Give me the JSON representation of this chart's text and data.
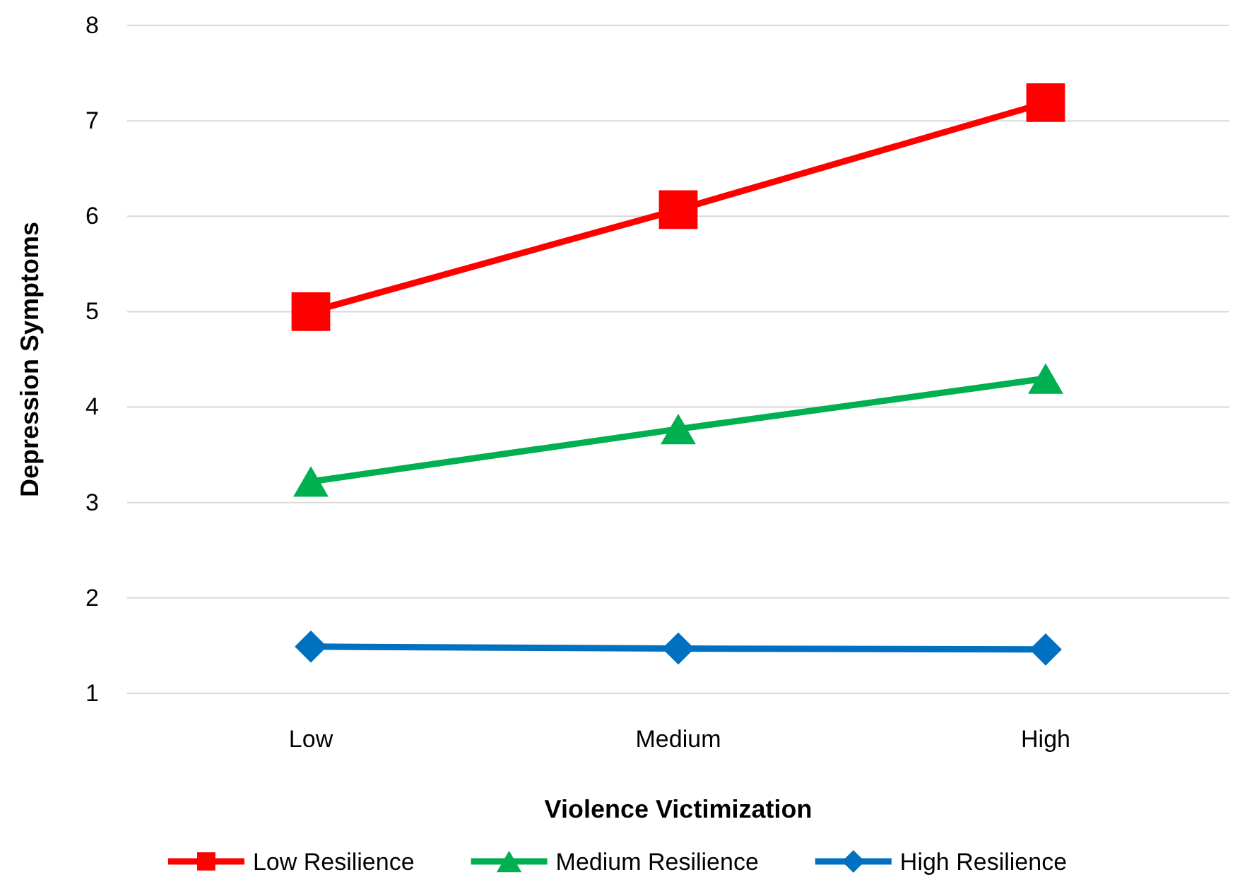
{
  "chart_data": {
    "type": "line",
    "xlabel": "Violence Victimization",
    "ylabel": "Depression Symptoms",
    "categories": [
      "Low",
      "Medium",
      "High"
    ],
    "series": [
      {
        "name": "Low Resilience",
        "color": "#ff0000",
        "marker": "square",
        "values": [
          5.0,
          6.07,
          7.19
        ]
      },
      {
        "name": "Medium Resilience",
        "color": "#00b050",
        "marker": "triangle",
        "values": [
          3.22,
          3.77,
          4.3
        ]
      },
      {
        "name": "High Resilience",
        "color": "#0070c0",
        "marker": "diamond",
        "values": [
          1.49,
          1.47,
          1.46
        ]
      }
    ],
    "ylim": [
      1,
      8
    ],
    "yticks": [
      1,
      2,
      3,
      4,
      5,
      6,
      7,
      8
    ],
    "grid": "y",
    "legend": "bottom"
  }
}
